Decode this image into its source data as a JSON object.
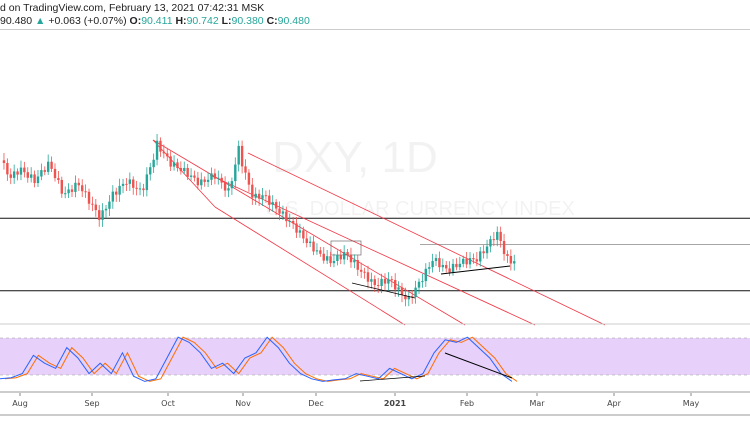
{
  "header": {
    "published": "d on TradingView.com, February 13, 2021 07:42:31 MSK",
    "last": "90.480",
    "arrow": "▲",
    "change": "+0.063 (+0.07%)",
    "o_label": "O:",
    "o": "90.411",
    "h_label": "H:",
    "h": "90.742",
    "l_label": "L:",
    "l": "90.380",
    "c_label": "C:",
    "c": "90.480"
  },
  "watermark": {
    "symbol": "DXY, 1D",
    "name": "U.S. DOLLAR CURRENCY INDEX"
  },
  "colors": {
    "up": "#26a69a",
    "down": "#ef5350",
    "channel": "#f23645",
    "k": "#2962ff",
    "d": "#ff6d00",
    "band": "#e1c4f7"
  },
  "chart_data": {
    "type": "candlestick",
    "title": "DXY, 1D",
    "xlabel": "",
    "ylabel": "",
    "x_ticks": [
      "Aug",
      "Sep",
      "Oct",
      "Nov",
      "Dec",
      "2021",
      "Feb",
      "Mar",
      "Apr",
      "May"
    ],
    "anchors_day_price": [
      [
        -8,
        94.0
      ],
      [
        -4,
        93.4
      ],
      [
        0,
        93.7
      ],
      [
        6,
        93.3
      ],
      [
        12,
        93.9
      ],
      [
        18,
        92.8
      ],
      [
        24,
        93.2
      ],
      [
        30,
        92.4
      ],
      [
        33,
        92.0
      ],
      [
        38,
        92.8
      ],
      [
        44,
        93.3
      ],
      [
        50,
        92.9
      ],
      [
        55,
        94.1
      ],
      [
        56,
        94.6
      ],
      [
        62,
        93.9
      ],
      [
        68,
        93.6
      ],
      [
        74,
        93.2
      ],
      [
        80,
        93.5
      ],
      [
        86,
        92.9
      ],
      [
        90,
        94.4
      ],
      [
        92,
        93.7
      ],
      [
        96,
        92.7
      ],
      [
        100,
        92.8
      ],
      [
        106,
        92.3
      ],
      [
        112,
        91.8
      ],
      [
        118,
        91.2
      ],
      [
        124,
        90.7
      ],
      [
        128,
        90.5
      ],
      [
        134,
        90.8
      ],
      [
        140,
        90.2
      ],
      [
        146,
        89.7
      ],
      [
        152,
        89.9
      ],
      [
        158,
        89.3
      ],
      [
        160,
        89.2
      ],
      [
        166,
        90.0
      ],
      [
        170,
        90.6
      ],
      [
        176,
        90.2
      ],
      [
        182,
        90.5
      ],
      [
        188,
        90.6
      ],
      [
        192,
        91.0
      ],
      [
        196,
        91.5
      ],
      [
        198,
        91.2
      ],
      [
        200,
        90.6
      ],
      [
        204,
        90.48
      ]
    ],
    "level_lines": [
      92.0,
      89.5,
      91.1
    ],
    "oscillator": {
      "name": "Stochastic",
      "upper": 80,
      "lower": 20,
      "k": [
        10,
        12,
        20,
        55,
        40,
        30,
        70,
        50,
        20,
        40,
        20,
        60,
        15,
        5,
        10,
        50,
        90,
        80,
        60,
        30,
        40,
        20,
        50,
        60,
        90,
        70,
        40,
        20,
        10,
        5,
        8,
        10,
        20,
        15,
        10,
        30,
        20,
        10,
        20,
        60,
        85,
        80,
        90,
        70,
        50,
        20,
        5
      ]
    }
  }
}
